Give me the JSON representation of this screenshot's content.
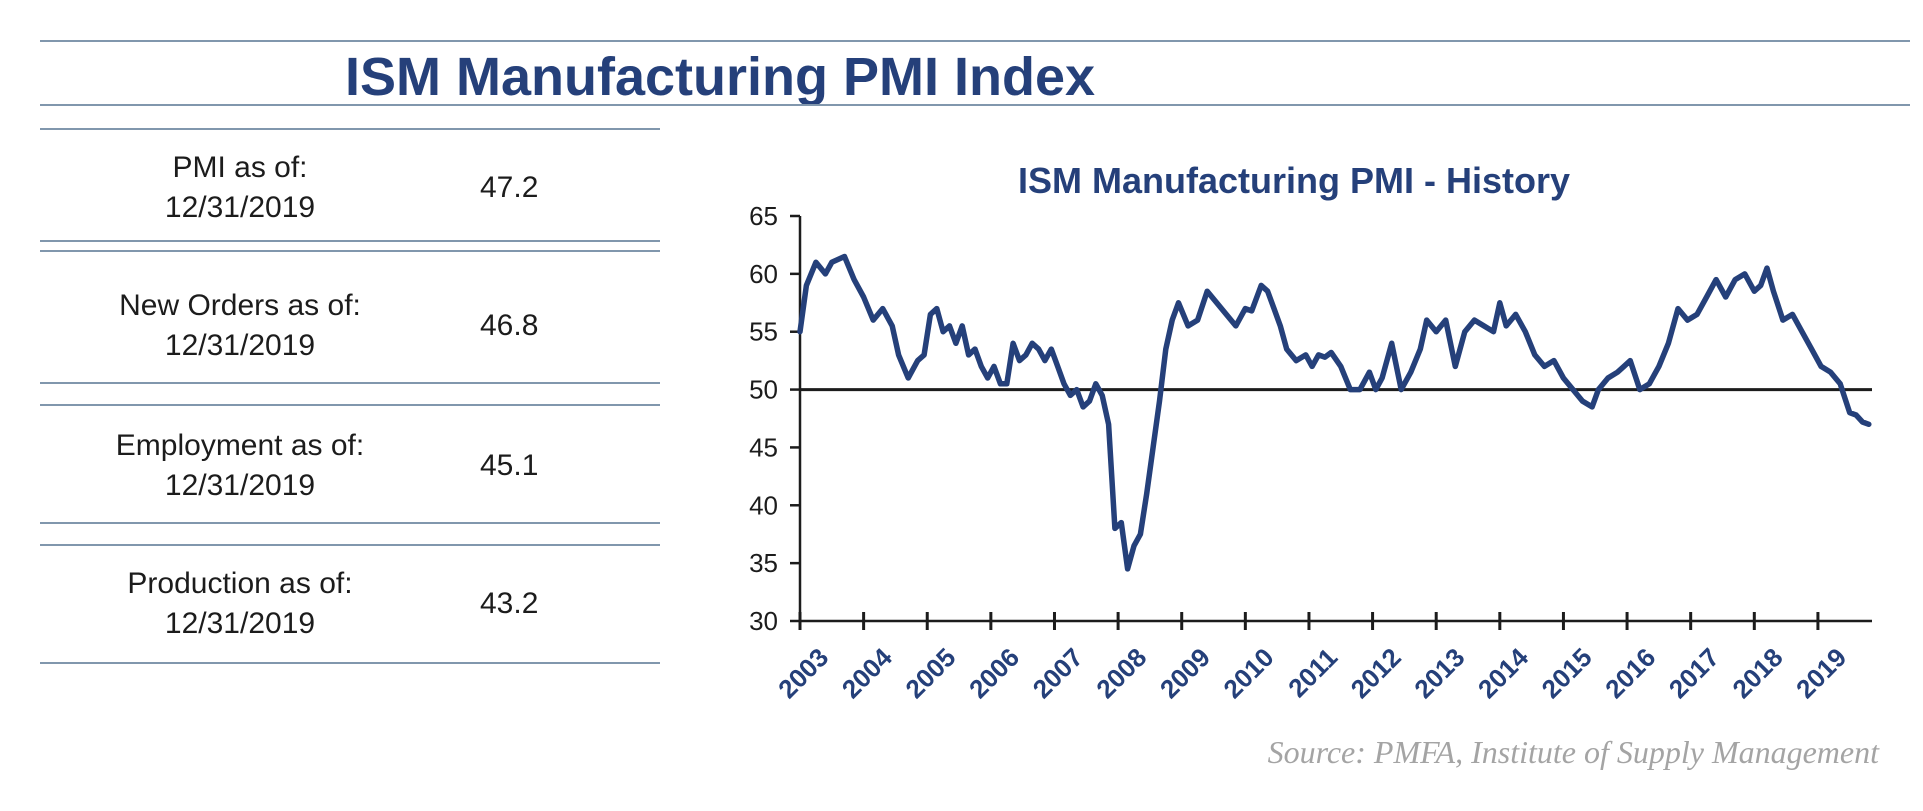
{
  "title": "ISM Manufacturing PMI Index",
  "stats": [
    {
      "label_line1": "PMI as of:",
      "label_line2": "12/31/2019",
      "value": "47.2"
    },
    {
      "label_line1": "New Orders as of:",
      "label_line2": "12/31/2019",
      "value": "46.8"
    },
    {
      "label_line1": "Employment as of:",
      "label_line2": "12/31/2019",
      "value": "45.1"
    },
    {
      "label_line1": "Production as of:",
      "label_line2": "12/31/2019",
      "value": "43.2"
    }
  ],
  "source": "Source:  PMFA,  Institute  of  Supply  Management",
  "colors": {
    "line": "#25407a",
    "rule": "#8197ad",
    "reference": "#1c1c1c"
  },
  "chart_data": {
    "type": "line",
    "title": "ISM Manufacturing PMI - History",
    "ylim": [
      30,
      65
    ],
    "yticks": [
      30,
      35,
      40,
      45,
      50,
      55,
      60,
      65
    ],
    "xlim": [
      2003,
      2019.85
    ],
    "xtick_labels": [
      "2003",
      "2004",
      "2005",
      "2006",
      "2007",
      "2008",
      "2009",
      "2010",
      "2011",
      "2012",
      "2013",
      "2014",
      "2015",
      "2016",
      "2017",
      "2018",
      "2019"
    ],
    "reference_line": 50,
    "series": [
      {
        "name": "ISM Manufacturing PMI",
        "x": [
          2003.0,
          2003.1,
          2003.25,
          2003.4,
          2003.5,
          2003.7,
          2003.85,
          2004.0,
          2004.15,
          2004.3,
          2004.45,
          2004.55,
          2004.7,
          2004.85,
          2004.95,
          2005.05,
          2005.15,
          2005.25,
          2005.35,
          2005.45,
          2005.55,
          2005.65,
          2005.75,
          2005.85,
          2005.95,
          2006.05,
          2006.15,
          2006.25,
          2006.35,
          2006.45,
          2006.55,
          2006.65,
          2006.75,
          2006.85,
          2006.95,
          2007.05,
          2007.15,
          2007.25,
          2007.35,
          2007.45,
          2007.55,
          2007.65,
          2007.75,
          2007.85,
          2007.95,
          2008.05,
          2008.15,
          2008.25,
          2008.35,
          2008.45,
          2008.55,
          2008.65,
          2008.75,
          2008.85,
          2008.95,
          2009.1,
          2009.25,
          2009.4,
          2009.55,
          2009.7,
          2009.85,
          2010.0,
          2010.1,
          2010.25,
          2010.35,
          2010.45,
          2010.55,
          2010.65,
          2010.8,
          2010.95,
          2011.05,
          2011.15,
          2011.25,
          2011.35,
          2011.5,
          2011.65,
          2011.8,
          2011.95,
          2012.05,
          2012.15,
          2012.3,
          2012.45,
          2012.6,
          2012.75,
          2012.85,
          2013.0,
          2013.15,
          2013.3,
          2013.45,
          2013.6,
          2013.75,
          2013.9,
          2014.0,
          2014.1,
          2014.25,
          2014.4,
          2014.55,
          2014.7,
          2014.85,
          2015.0,
          2015.15,
          2015.3,
          2015.45,
          2015.55,
          2015.7,
          2015.85,
          2015.95,
          2016.05,
          2016.2,
          2016.35,
          2016.5,
          2016.65,
          2016.8,
          2016.95,
          2017.1,
          2017.25,
          2017.4,
          2017.55,
          2017.7,
          2017.85,
          2018.0,
          2018.1,
          2018.2,
          2018.3,
          2018.45,
          2018.6,
          2018.75,
          2018.9,
          2019.05,
          2019.2,
          2019.35,
          2019.5,
          2019.6,
          2019.7,
          2019.8
        ],
        "values": [
          55,
          59,
          61,
          60,
          61,
          61.5,
          59.5,
          58,
          56,
          57,
          55.5,
          53,
          51,
          52.5,
          53,
          56.5,
          57,
          55,
          55.5,
          54,
          55.5,
          53,
          53.5,
          52,
          51,
          52,
          50.5,
          50.5,
          54,
          52.5,
          53,
          54,
          53.5,
          52.5,
          53.5,
          52,
          50.5,
          49.5,
          50,
          48.5,
          49,
          50.5,
          49.5,
          47,
          38,
          38.5,
          34.5,
          36.5,
          37.5,
          41,
          45,
          49,
          53.5,
          56,
          57.5,
          55.5,
          56,
          58.5,
          57.5,
          56.5,
          55.5,
          57,
          56.8,
          59,
          58.5,
          57,
          55.5,
          53.5,
          52.5,
          53,
          52,
          53,
          52.8,
          53.2,
          52,
          50,
          50,
          51.5,
          50,
          51,
          54,
          50,
          51.5,
          53.5,
          56,
          55,
          56,
          52,
          55,
          56,
          55.5,
          55,
          57.5,
          55.5,
          56.5,
          55,
          53,
          52,
          52.5,
          51,
          50,
          49,
          48.5,
          50,
          51,
          51.5,
          52,
          52.5,
          50,
          50.5,
          52,
          54,
          57,
          56,
          56.5,
          58,
          59.5,
          58,
          59.5,
          60,
          58.5,
          59,
          60.5,
          58.5,
          56,
          56.5,
          55,
          53.5,
          52,
          51.5,
          50.5,
          48,
          47.8,
          47.2,
          47
        ]
      }
    ]
  }
}
